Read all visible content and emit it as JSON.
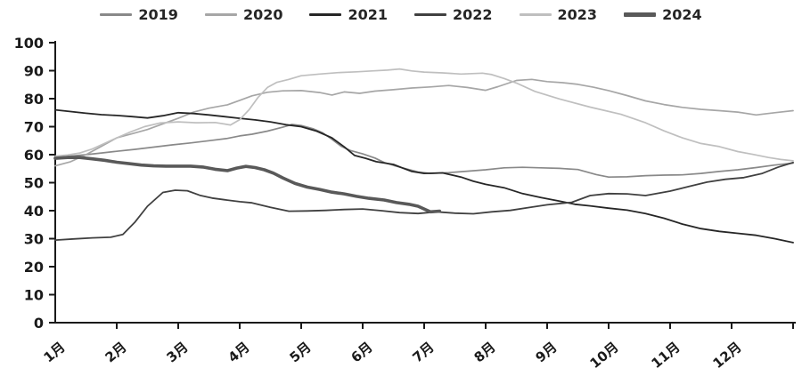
{
  "chart_data": {
    "type": "line",
    "title": "",
    "xlabel": "",
    "ylabel": "",
    "grid": false,
    "legend_position": "top",
    "x_axis": {
      "labels": [
        "1月",
        "2月",
        "3月",
        "4月",
        "5月",
        "6月",
        "7月",
        "8月",
        "9月",
        "10月",
        "11月",
        "12月"
      ],
      "months_shown": 12
    },
    "y_axis": {
      "min": 0,
      "max": 100,
      "step": 10,
      "tick_labels": [
        "0",
        "10",
        "20",
        "30",
        "40",
        "50",
        "60",
        "70",
        "80",
        "90",
        "100"
      ]
    },
    "axis_color": "#1a1a1a",
    "series": [
      {
        "name": "2019",
        "color": "#898989",
        "width": 1.7,
        "points": [
          [
            1.0,
            59
          ],
          [
            1.25,
            59.5
          ],
          [
            1.5,
            60
          ],
          [
            1.75,
            60.6
          ],
          [
            2.0,
            61.2
          ],
          [
            2.3,
            61.9
          ],
          [
            2.6,
            62.7
          ],
          [
            2.9,
            63.5
          ],
          [
            3.2,
            64.2
          ],
          [
            3.5,
            65
          ],
          [
            3.8,
            65.8
          ],
          [
            4.0,
            66.7
          ],
          [
            4.2,
            67.3
          ],
          [
            4.45,
            68.4
          ],
          [
            4.7,
            69.8
          ],
          [
            4.85,
            70.8
          ],
          [
            5.0,
            70.4
          ],
          [
            5.2,
            69.2
          ],
          [
            5.35,
            67.8
          ],
          [
            5.5,
            65.5
          ],
          [
            5.65,
            63
          ],
          [
            5.8,
            61.5
          ],
          [
            6.0,
            60.3
          ],
          [
            6.2,
            58.8
          ],
          [
            6.35,
            57.2
          ],
          [
            6.5,
            56.2
          ],
          [
            6.7,
            55
          ],
          [
            6.9,
            53.8
          ],
          [
            7.1,
            53.3
          ],
          [
            7.4,
            53.6
          ],
          [
            7.7,
            54.1
          ],
          [
            8.0,
            54.6
          ],
          [
            8.3,
            55.3
          ],
          [
            8.6,
            55.5
          ],
          [
            8.9,
            55.3
          ],
          [
            9.2,
            55.1
          ],
          [
            9.5,
            54.7
          ],
          [
            9.8,
            52.9
          ],
          [
            10.0,
            52
          ],
          [
            10.3,
            52.1
          ],
          [
            10.6,
            52.5
          ],
          [
            10.9,
            52.7
          ],
          [
            11.2,
            52.8
          ],
          [
            11.5,
            53.3
          ],
          [
            11.8,
            54
          ],
          [
            12.1,
            54.6
          ],
          [
            12.4,
            55.4
          ],
          [
            12.7,
            56.3
          ],
          [
            13.0,
            57
          ]
        ]
      },
      {
        "name": "2020",
        "color": "#a6a6a6",
        "width": 1.7,
        "points": [
          [
            1.0,
            56
          ],
          [
            1.25,
            57.5
          ],
          [
            1.5,
            60
          ],
          [
            1.75,
            63
          ],
          [
            2.0,
            66
          ],
          [
            2.25,
            67.5
          ],
          [
            2.5,
            69
          ],
          [
            2.75,
            71
          ],
          [
            3.0,
            73
          ],
          [
            3.25,
            75.2
          ],
          [
            3.5,
            76.6
          ],
          [
            3.8,
            77.8
          ],
          [
            4.0,
            79.4
          ],
          [
            4.2,
            81
          ],
          [
            4.45,
            82.3
          ],
          [
            4.7,
            82.8
          ],
          [
            5.0,
            82.9
          ],
          [
            5.3,
            82.2
          ],
          [
            5.5,
            81.3
          ],
          [
            5.7,
            82.4
          ],
          [
            5.95,
            81.9
          ],
          [
            6.2,
            82.7
          ],
          [
            6.5,
            83.2
          ],
          [
            6.8,
            83.8
          ],
          [
            7.1,
            84.2
          ],
          [
            7.4,
            84.7
          ],
          [
            7.7,
            84
          ],
          [
            8.0,
            83
          ],
          [
            8.2,
            84.3
          ],
          [
            8.5,
            86.5
          ],
          [
            8.75,
            86.9
          ],
          [
            9.0,
            86.1
          ],
          [
            9.25,
            85.7
          ],
          [
            9.5,
            85.1
          ],
          [
            9.75,
            84.1
          ],
          [
            10.0,
            82.9
          ],
          [
            10.3,
            81.1
          ],
          [
            10.6,
            79.2
          ],
          [
            10.9,
            77.9
          ],
          [
            11.2,
            76.9
          ],
          [
            11.5,
            76.2
          ],
          [
            11.8,
            75.7
          ],
          [
            12.1,
            75.2
          ],
          [
            12.4,
            74.2
          ],
          [
            12.7,
            75
          ],
          [
            13.0,
            75.7
          ]
        ]
      },
      {
        "name": "2021",
        "color": "#262626",
        "width": 1.8,
        "points": [
          [
            1.0,
            76
          ],
          [
            1.25,
            75.4
          ],
          [
            1.5,
            74.8
          ],
          [
            1.75,
            74.3
          ],
          [
            2.0,
            74
          ],
          [
            2.25,
            73.6
          ],
          [
            2.5,
            73.1
          ],
          [
            2.75,
            73.9
          ],
          [
            3.0,
            75
          ],
          [
            3.25,
            74.7
          ],
          [
            3.5,
            74.2
          ],
          [
            3.75,
            73.6
          ],
          [
            4.0,
            73
          ],
          [
            4.25,
            72.4
          ],
          [
            4.5,
            71.7
          ],
          [
            4.75,
            70.7
          ],
          [
            5.0,
            70
          ],
          [
            5.25,
            68.4
          ],
          [
            5.5,
            66
          ],
          [
            5.7,
            62.8
          ],
          [
            5.87,
            59.7
          ],
          [
            6.05,
            58.7
          ],
          [
            6.22,
            57.5
          ],
          [
            6.5,
            56.5
          ],
          [
            6.65,
            55.2
          ],
          [
            6.8,
            54
          ],
          [
            7.0,
            53.3
          ],
          [
            7.3,
            53.5
          ],
          [
            7.6,
            52
          ],
          [
            7.8,
            50.5
          ],
          [
            8.0,
            49.4
          ],
          [
            8.3,
            48.2
          ],
          [
            8.6,
            46.1
          ],
          [
            8.9,
            44.7
          ],
          [
            9.2,
            43.4
          ],
          [
            9.45,
            42.3
          ],
          [
            9.7,
            41.7
          ],
          [
            10.0,
            40.9
          ],
          [
            10.3,
            40.2
          ],
          [
            10.6,
            39
          ],
          [
            10.9,
            37.3
          ],
          [
            11.2,
            35.2
          ],
          [
            11.5,
            33.6
          ],
          [
            11.8,
            32.6
          ],
          [
            12.1,
            31.9
          ],
          [
            12.4,
            31.2
          ],
          [
            12.7,
            30
          ],
          [
            13.0,
            28.6
          ]
        ]
      },
      {
        "name": "2022",
        "color": "#404040",
        "width": 1.8,
        "points": [
          [
            1.0,
            29.5
          ],
          [
            1.3,
            29.9
          ],
          [
            1.6,
            30.3
          ],
          [
            1.9,
            30.5
          ],
          [
            2.1,
            31.5
          ],
          [
            2.3,
            36
          ],
          [
            2.5,
            41.6
          ],
          [
            2.75,
            46.5
          ],
          [
            2.95,
            47.3
          ],
          [
            3.15,
            47.1
          ],
          [
            3.35,
            45.5
          ],
          [
            3.55,
            44.5
          ],
          [
            3.75,
            43.9
          ],
          [
            4.0,
            43.2
          ],
          [
            4.2,
            42.8
          ],
          [
            4.5,
            41.2
          ],
          [
            4.8,
            39.8
          ],
          [
            5.1,
            39.9
          ],
          [
            5.4,
            40.1
          ],
          [
            5.7,
            40.4
          ],
          [
            6.0,
            40.6
          ],
          [
            6.3,
            40
          ],
          [
            6.6,
            39.3
          ],
          [
            6.9,
            39
          ],
          [
            7.2,
            39.6
          ],
          [
            7.5,
            39.1
          ],
          [
            7.8,
            38.9
          ],
          [
            8.1,
            39.6
          ],
          [
            8.4,
            40.1
          ],
          [
            8.7,
            41.1
          ],
          [
            9.0,
            42.1
          ],
          [
            9.4,
            43
          ],
          [
            9.7,
            45.4
          ],
          [
            10.0,
            46.1
          ],
          [
            10.3,
            46
          ],
          [
            10.6,
            45.4
          ],
          [
            11.0,
            47
          ],
          [
            11.3,
            48.6
          ],
          [
            11.6,
            50.2
          ],
          [
            11.9,
            51.2
          ],
          [
            12.2,
            51.8
          ],
          [
            12.5,
            53.3
          ],
          [
            12.75,
            55.5
          ],
          [
            13.0,
            57.2
          ]
        ]
      },
      {
        "name": "2023",
        "color": "#bfbfbf",
        "width": 1.7,
        "points": [
          [
            1.0,
            59.5
          ],
          [
            1.2,
            59.9
          ],
          [
            1.4,
            60.6
          ],
          [
            1.6,
            62
          ],
          [
            1.8,
            64
          ],
          [
            2.0,
            66
          ],
          [
            2.2,
            67.9
          ],
          [
            2.45,
            70
          ],
          [
            2.7,
            71.3
          ],
          [
            3.0,
            71.7
          ],
          [
            3.3,
            71.4
          ],
          [
            3.6,
            71.5
          ],
          [
            3.85,
            70.6
          ],
          [
            4.0,
            72.5
          ],
          [
            4.15,
            76
          ],
          [
            4.3,
            80.5
          ],
          [
            4.45,
            84
          ],
          [
            4.6,
            85.8
          ],
          [
            4.8,
            86.9
          ],
          [
            5.0,
            88.2
          ],
          [
            5.3,
            88.8
          ],
          [
            5.6,
            89.3
          ],
          [
            5.9,
            89.6
          ],
          [
            6.15,
            89.9
          ],
          [
            6.4,
            90.2
          ],
          [
            6.6,
            90.6
          ],
          [
            6.8,
            89.9
          ],
          [
            7.0,
            89.5
          ],
          [
            7.3,
            89.2
          ],
          [
            7.6,
            88.8
          ],
          [
            7.95,
            89.1
          ],
          [
            8.1,
            88.6
          ],
          [
            8.3,
            87.2
          ],
          [
            8.5,
            85.6
          ],
          [
            8.8,
            82.6
          ],
          [
            9.2,
            79.9
          ],
          [
            9.7,
            77
          ],
          [
            10.2,
            74.4
          ],
          [
            10.6,
            71.4
          ],
          [
            10.9,
            68.5
          ],
          [
            11.2,
            66
          ],
          [
            11.5,
            64
          ],
          [
            11.8,
            62.9
          ],
          [
            12.1,
            61.1
          ],
          [
            12.35,
            60.1
          ],
          [
            12.6,
            59
          ],
          [
            12.8,
            58.3
          ],
          [
            13.0,
            57.8
          ]
        ]
      },
      {
        "name": "2024",
        "color": "#595959",
        "width": 3.6,
        "points": [
          [
            1.0,
            58.7
          ],
          [
            1.2,
            59
          ],
          [
            1.4,
            59
          ],
          [
            1.6,
            58.5
          ],
          [
            1.8,
            58
          ],
          [
            2.0,
            57.3
          ],
          [
            2.2,
            56.8
          ],
          [
            2.4,
            56.3
          ],
          [
            2.6,
            56
          ],
          [
            2.8,
            55.9
          ],
          [
            3.0,
            55.9
          ],
          [
            3.2,
            55.9
          ],
          [
            3.4,
            55.6
          ],
          [
            3.6,
            54.8
          ],
          [
            3.8,
            54.3
          ],
          [
            3.95,
            55.2
          ],
          [
            4.1,
            55.8
          ],
          [
            4.25,
            55.4
          ],
          [
            4.4,
            54.6
          ],
          [
            4.55,
            53.4
          ],
          [
            4.7,
            51.7
          ],
          [
            4.9,
            49.7
          ],
          [
            5.1,
            48.4
          ],
          [
            5.3,
            47.6
          ],
          [
            5.5,
            46.6
          ],
          [
            5.7,
            46
          ],
          [
            5.9,
            45.1
          ],
          [
            6.1,
            44.4
          ],
          [
            6.35,
            43.8
          ],
          [
            6.55,
            42.9
          ],
          [
            6.75,
            42.3
          ],
          [
            6.9,
            41.6
          ],
          [
            7.0,
            40.6
          ],
          [
            7.1,
            39.6
          ],
          [
            7.25,
            39.8
          ]
        ]
      }
    ]
  }
}
